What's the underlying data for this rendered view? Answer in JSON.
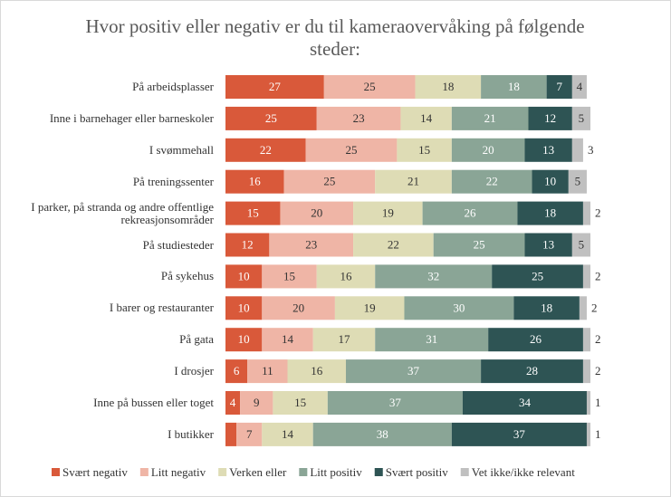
{
  "chart_data": {
    "type": "stacked-bar-horizontal",
    "title": "Hvor positiv eller negativ er du til kameraovervåking på følgende steder:",
    "categories": [
      "På arbeidsplasser",
      "Inne i barnehager eller barneskoler",
      "I svømmehall",
      "På treningssenter",
      "I parker, på stranda og andre offentlige rekreasjonsområder",
      "På studiesteder",
      "På sykehus",
      "I barer og restauranter",
      "På gata",
      "I drosjer",
      "Inne på bussen eller toget",
      "I butikker"
    ],
    "series": [
      {
        "name": "Svært negativ",
        "color": "#d9593a",
        "values": [
          27,
          25,
          22,
          16,
          15,
          12,
          10,
          10,
          10,
          6,
          4,
          3
        ]
      },
      {
        "name": "Litt negativ",
        "color": "#efb5a6",
        "values": [
          25,
          23,
          25,
          25,
          20,
          23,
          15,
          20,
          14,
          11,
          9,
          7
        ]
      },
      {
        "name": "Verken eller",
        "color": "#dedcb5",
        "values": [
          18,
          14,
          15,
          21,
          19,
          22,
          16,
          19,
          17,
          16,
          15,
          14
        ]
      },
      {
        "name": "Litt positiv",
        "color": "#8aa596",
        "values": [
          18,
          21,
          20,
          22,
          26,
          25,
          32,
          30,
          31,
          37,
          37,
          38
        ]
      },
      {
        "name": "Svært positiv",
        "color": "#2e5454",
        "values": [
          7,
          12,
          13,
          10,
          18,
          13,
          25,
          18,
          26,
          28,
          34,
          37
        ]
      },
      {
        "name": "Vet ikke/ikke relevant",
        "color": "#c0c0c0",
        "values": [
          4,
          5,
          3,
          5,
          2,
          5,
          2,
          2,
          2,
          2,
          1,
          1
        ]
      }
    ],
    "legend": "bottom"
  }
}
